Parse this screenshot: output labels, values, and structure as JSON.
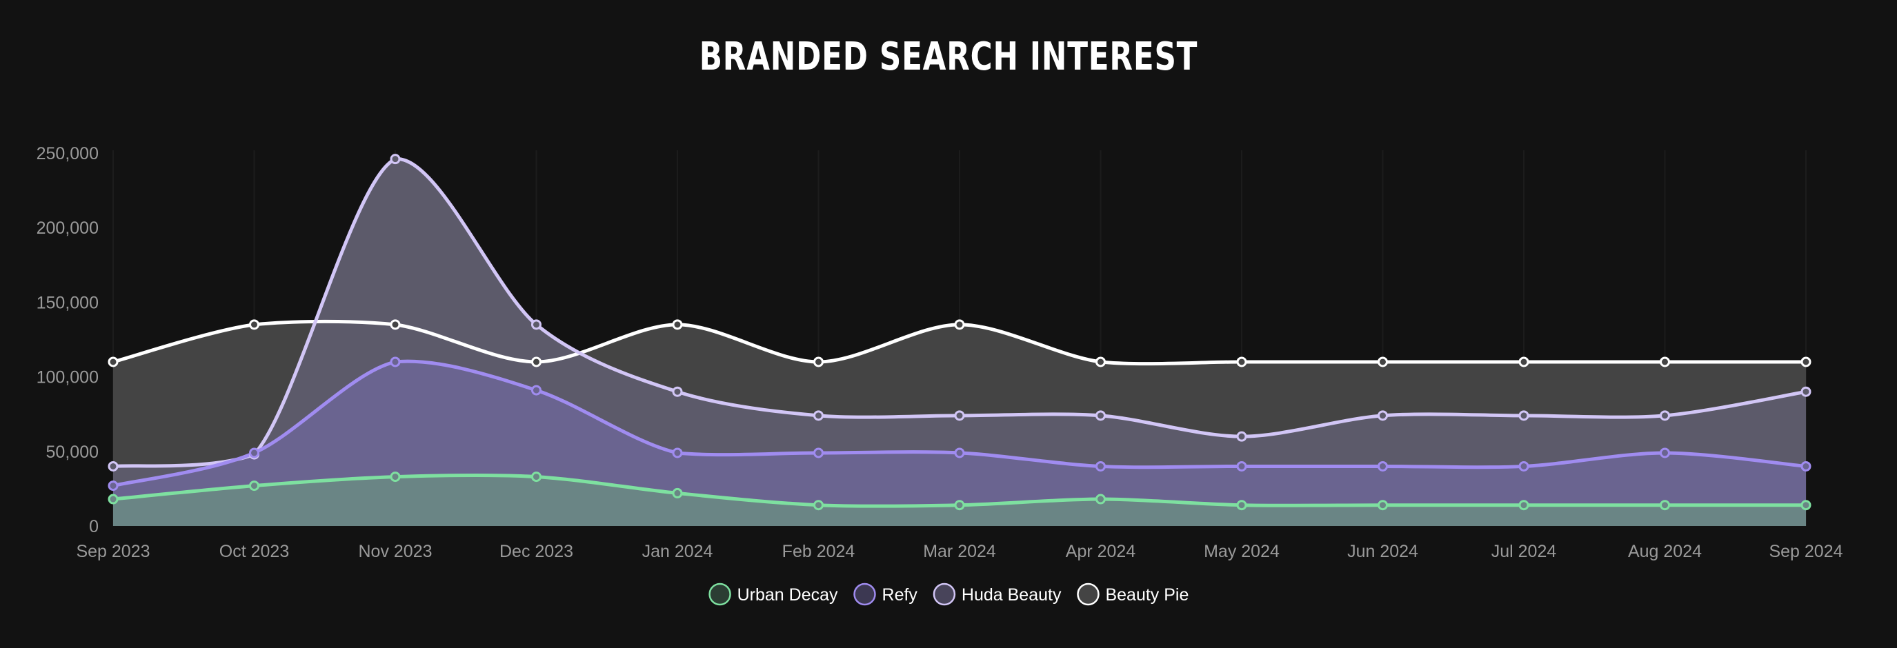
{
  "chart_data": {
    "type": "area",
    "title": "BRANDED SEARCH INTEREST",
    "categories": [
      "Sep 2023",
      "Oct 2023",
      "Nov 2023",
      "Dec 2023",
      "Jan 2024",
      "Feb 2024",
      "Mar 2024",
      "Apr 2024",
      "May 2024",
      "Jun 2024",
      "Jul 2024",
      "Aug 2024",
      "Sep 2024"
    ],
    "ylim": [
      0,
      250000
    ],
    "yticks": [
      "0",
      "50,000",
      "100,000",
      "150,000",
      "200,000",
      "250,000"
    ],
    "yticks_values": [
      0,
      50000,
      100000,
      150000,
      200000,
      250000
    ],
    "legend_position": "bottom",
    "grid": "vertical",
    "series": [
      {
        "name": "Beauty Pie",
        "color": "#ffffff",
        "fill": "#444444",
        "values": [
          110000,
          135000,
          135000,
          110000,
          135000,
          110000,
          135000,
          110000,
          110000,
          110000,
          110000,
          110000,
          110000
        ]
      },
      {
        "name": "Huda Beauty",
        "color": "#d2c6f6",
        "fill": "#5c5a6a",
        "values": [
          40000,
          48000,
          246000,
          135000,
          90000,
          74000,
          74000,
          74000,
          60000,
          74000,
          74000,
          74000,
          90000
        ]
      },
      {
        "name": "Refy",
        "color": "#a08cf0",
        "fill": "#6a6490",
        "values": [
          27000,
          49000,
          110000,
          91000,
          49000,
          49000,
          49000,
          40000,
          40000,
          40000,
          40000,
          49000,
          40000
        ]
      },
      {
        "name": "Urban Decay",
        "color": "#7ee0a0",
        "fill": "#6a8585",
        "values": [
          18000,
          27000,
          33000,
          33000,
          22000,
          14000,
          14000,
          18000,
          14000,
          14000,
          14000,
          14000,
          14000
        ]
      }
    ],
    "legend_order": [
      "Urban Decay",
      "Refy",
      "Huda Beauty",
      "Beauty Pie"
    ],
    "legend_swatch_fill": {
      "Urban Decay": "#2b3d33",
      "Refy": "#3c3852",
      "Huda Beauty": "#48445a",
      "Beauty Pie": "#444444"
    }
  }
}
